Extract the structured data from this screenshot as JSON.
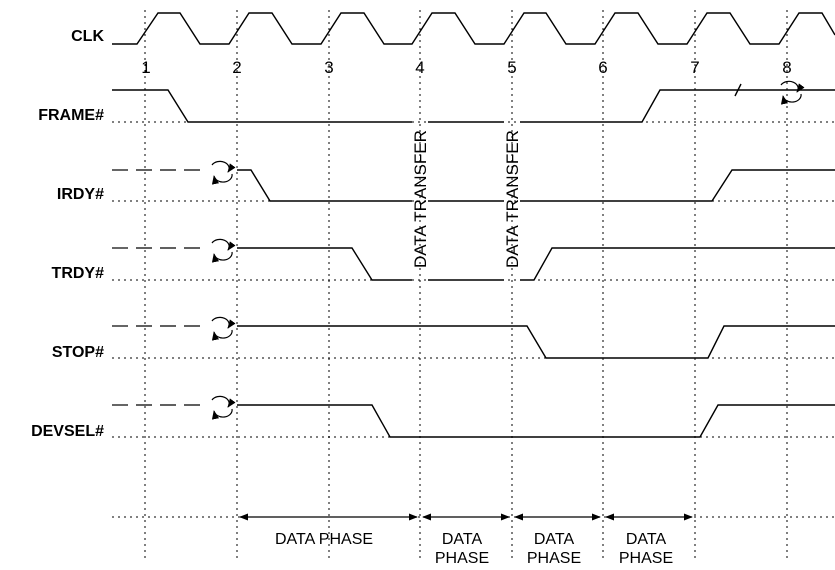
{
  "signals": {
    "clk": "CLK",
    "frame": "FRAME#",
    "irdy": "IRDY#",
    "trdy": "TRDY#",
    "stop": "STOP#",
    "devsel": "DEVSEL#"
  },
  "clock_numbers": [
    "1",
    "2",
    "3",
    "4",
    "5",
    "6",
    "7",
    "8"
  ],
  "annotations": {
    "transfer_1": "DATA TRANSFER",
    "transfer_2": "DATA TRANSFER"
  },
  "phases": {
    "phase_1": "DATA PHASE",
    "phase_2_top": "DATA",
    "phase_2_bottom": "PHASE",
    "phase_3_top": "DATA",
    "phase_3_bottom": "PHASE",
    "phase_4_top": "DATA",
    "phase_4_bottom": "PHASE"
  }
}
